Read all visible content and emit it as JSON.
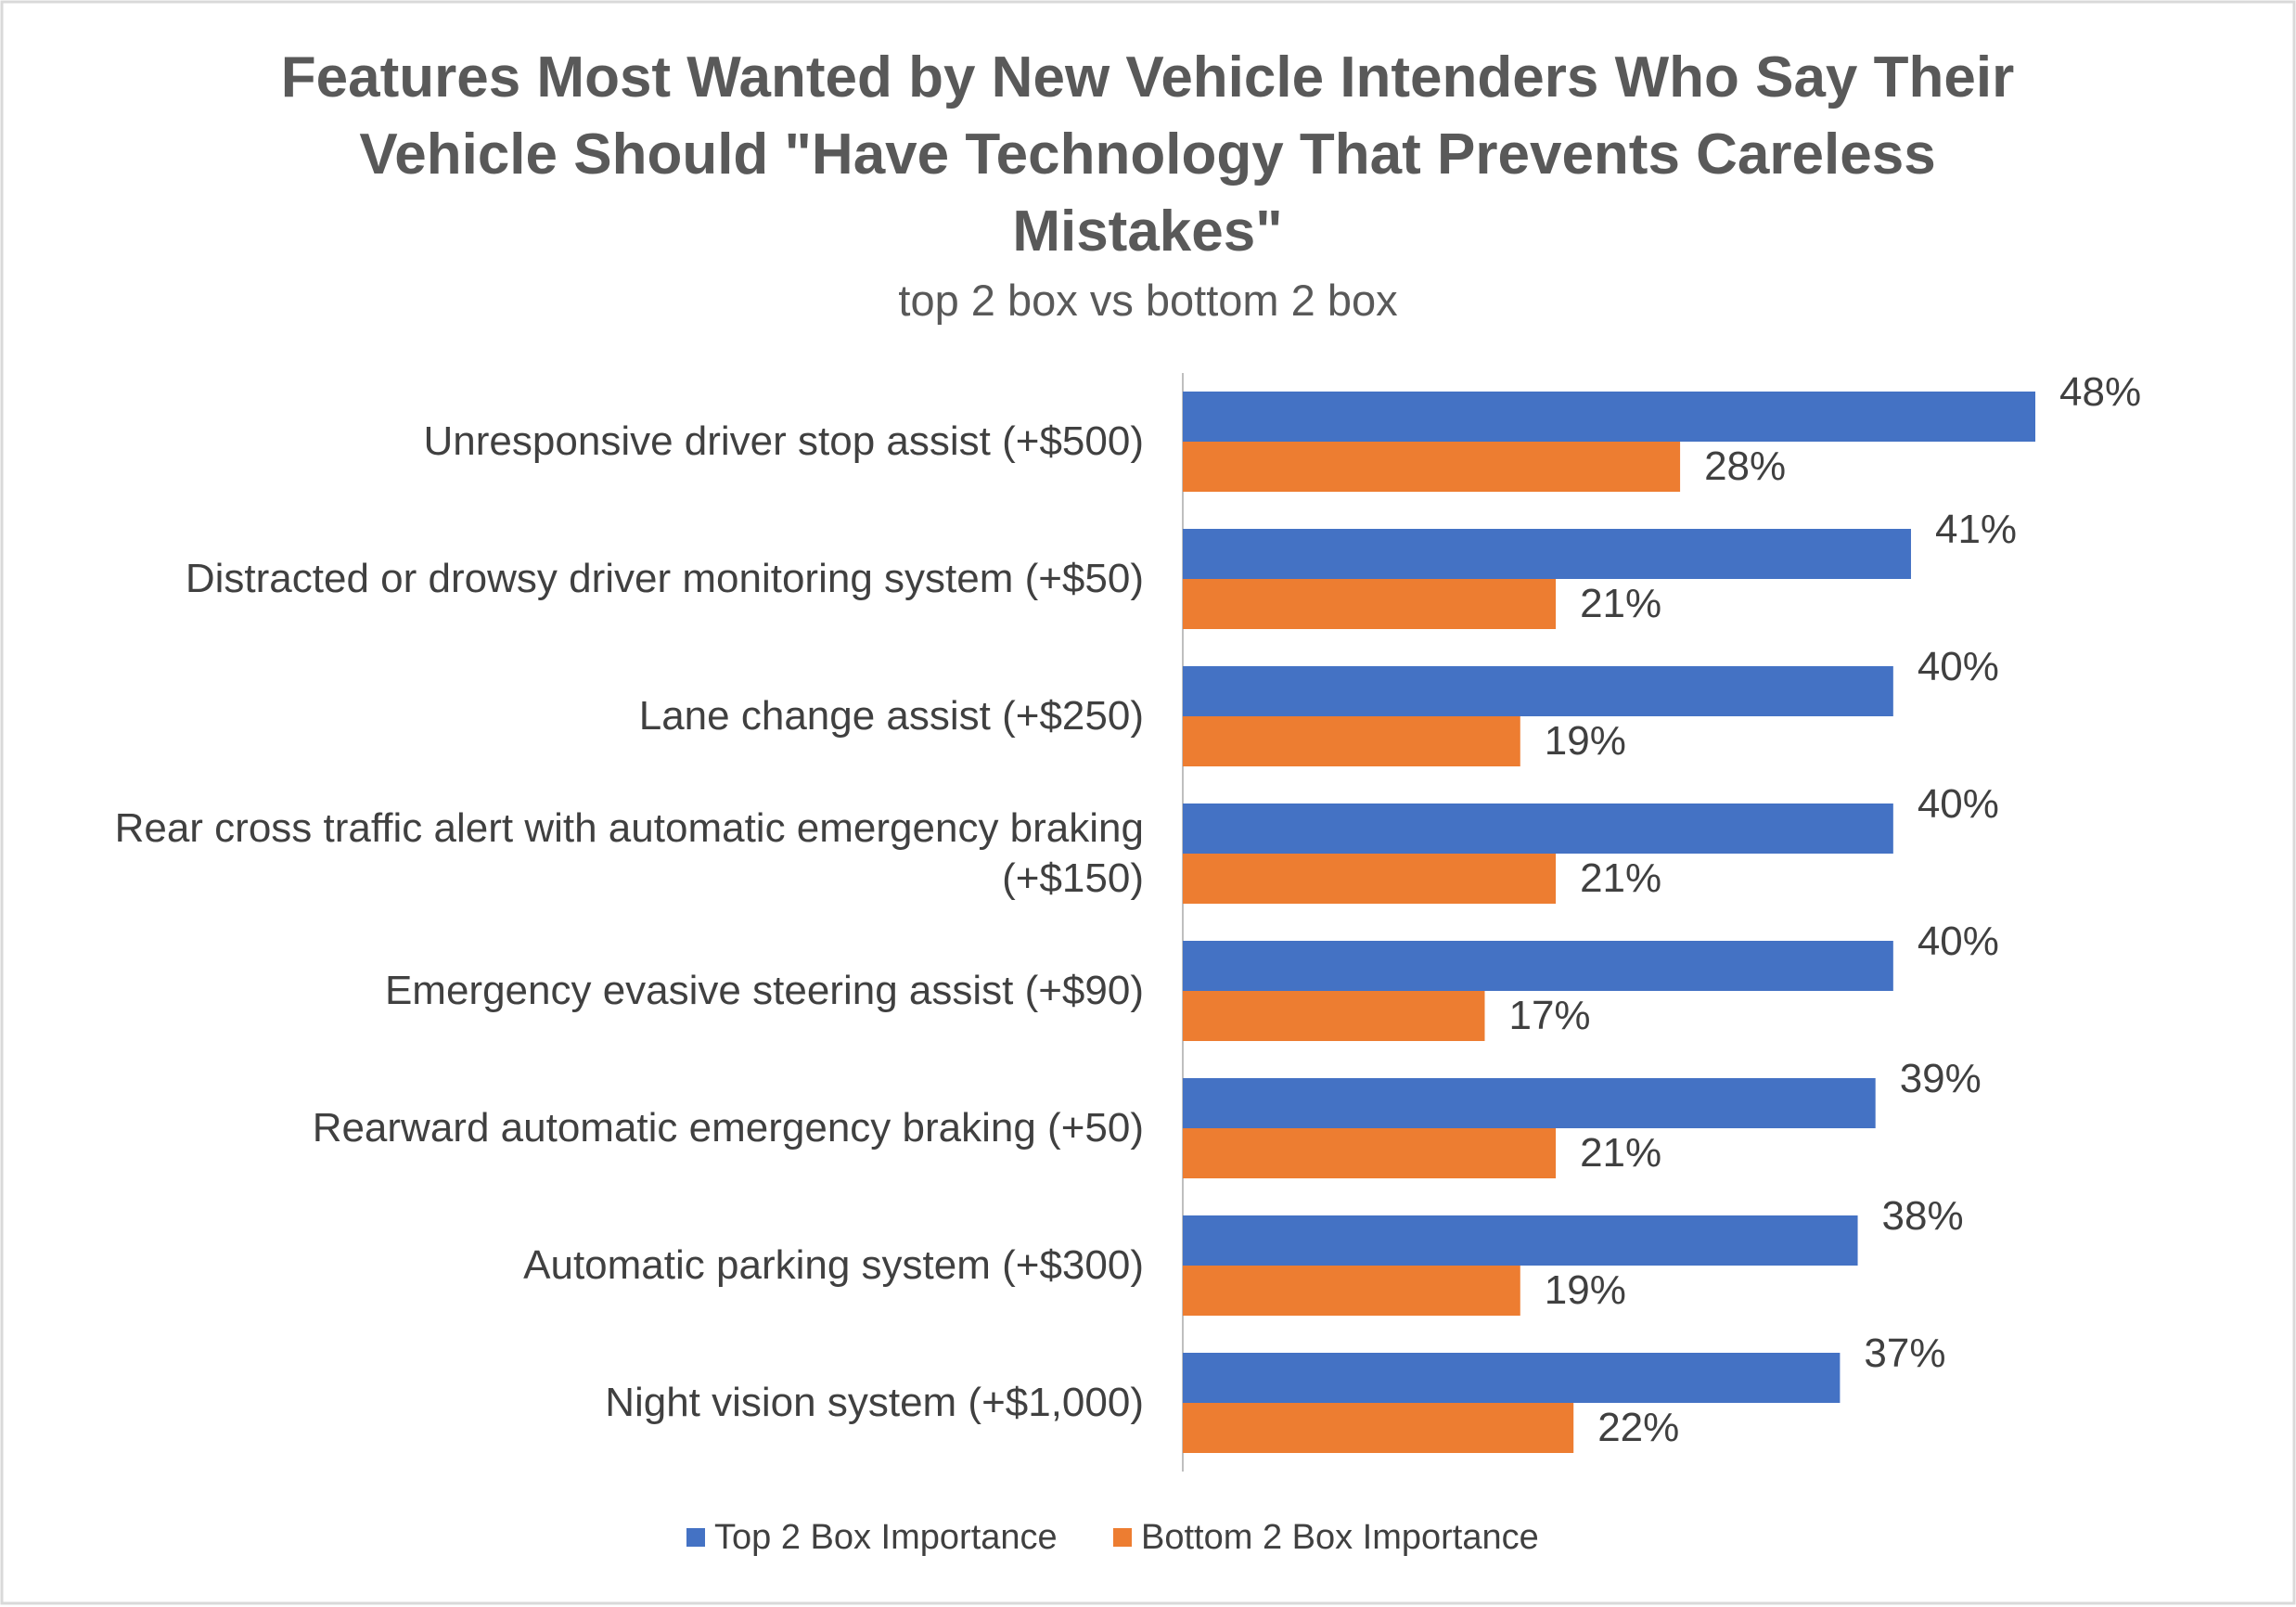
{
  "chart_data": {
    "type": "bar",
    "orientation": "horizontal",
    "title": "Features Most Wanted by New Vehicle Intenders Who Say Their Vehicle Should \"Have Technology That Prevents Careless Mistakes\"",
    "subtitle": "top 2 box vs bottom 2 box",
    "categories": [
      "Unresponsive driver stop assist (+$500)",
      "Distracted or drowsy driver monitoring system (+$50)",
      "Lane change assist (+$250)",
      "Rear cross traffic alert with automatic emergency braking (+$150)",
      "Emergency evasive steering assist (+$90)",
      "Rearward automatic emergency braking (+50)",
      "Automatic parking system (+$300)",
      "Night vision system (+$1,000)"
    ],
    "series": [
      {
        "name": "Top 2 Box Importance",
        "color": "#4472c4",
        "values": [
          48,
          41,
          40,
          40,
          40,
          39,
          38,
          37
        ],
        "value_labels": [
          "48%",
          "41%",
          "40%",
          "40%",
          "40%",
          "39%",
          "38%",
          "37%"
        ]
      },
      {
        "name": "Bottom 2 Box Importance",
        "color": "#ed7d31",
        "values": [
          28,
          21,
          19,
          21,
          17,
          21,
          19,
          22
        ],
        "value_labels": [
          "28%",
          "21%",
          "19%",
          "21%",
          "17%",
          "21%",
          "19%",
          "22%"
        ]
      }
    ],
    "legend": "bottom"
  }
}
